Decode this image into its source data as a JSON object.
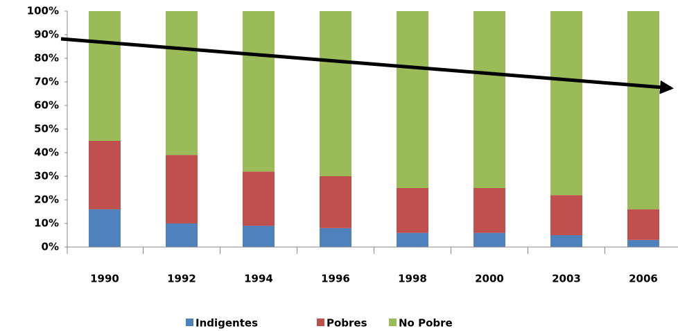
{
  "chart_data": {
    "type": "stacked_bar",
    "categories": [
      "1990",
      "1992",
      "1994",
      "1996",
      "1998",
      "2000",
      "2003",
      "2006"
    ],
    "series": [
      {
        "name": "Indigentes",
        "color": "#4f81bd",
        "values": [
          16,
          10,
          9,
          8,
          6,
          6,
          5,
          3
        ]
      },
      {
        "name": "Pobres",
        "color": "#c0504d",
        "values": [
          29,
          29,
          23,
          22,
          19,
          19,
          17,
          13
        ]
      },
      {
        "name": "No Pobre",
        "color": "#9bbb59",
        "values": [
          55,
          61,
          68,
          70,
          75,
          75,
          78,
          84
        ]
      }
    ],
    "ylim": [
      0,
      100
    ],
    "yticks": [
      {
        "value": 0,
        "label": "0%"
      },
      {
        "value": 10,
        "label": "10%"
      },
      {
        "value": 20,
        "label": "20%"
      },
      {
        "value": 30,
        "label": "30%"
      },
      {
        "value": 40,
        "label": "40%"
      },
      {
        "value": 50,
        "label": "50%"
      },
      {
        "value": 60,
        "label": "60%"
      },
      {
        "value": 70,
        "label": "70%"
      },
      {
        "value": 80,
        "label": "80%"
      },
      {
        "value": 90,
        "label": "90%"
      },
      {
        "value": 100,
        "label": "100%"
      }
    ],
    "grid": false,
    "legend": "bottom"
  }
}
